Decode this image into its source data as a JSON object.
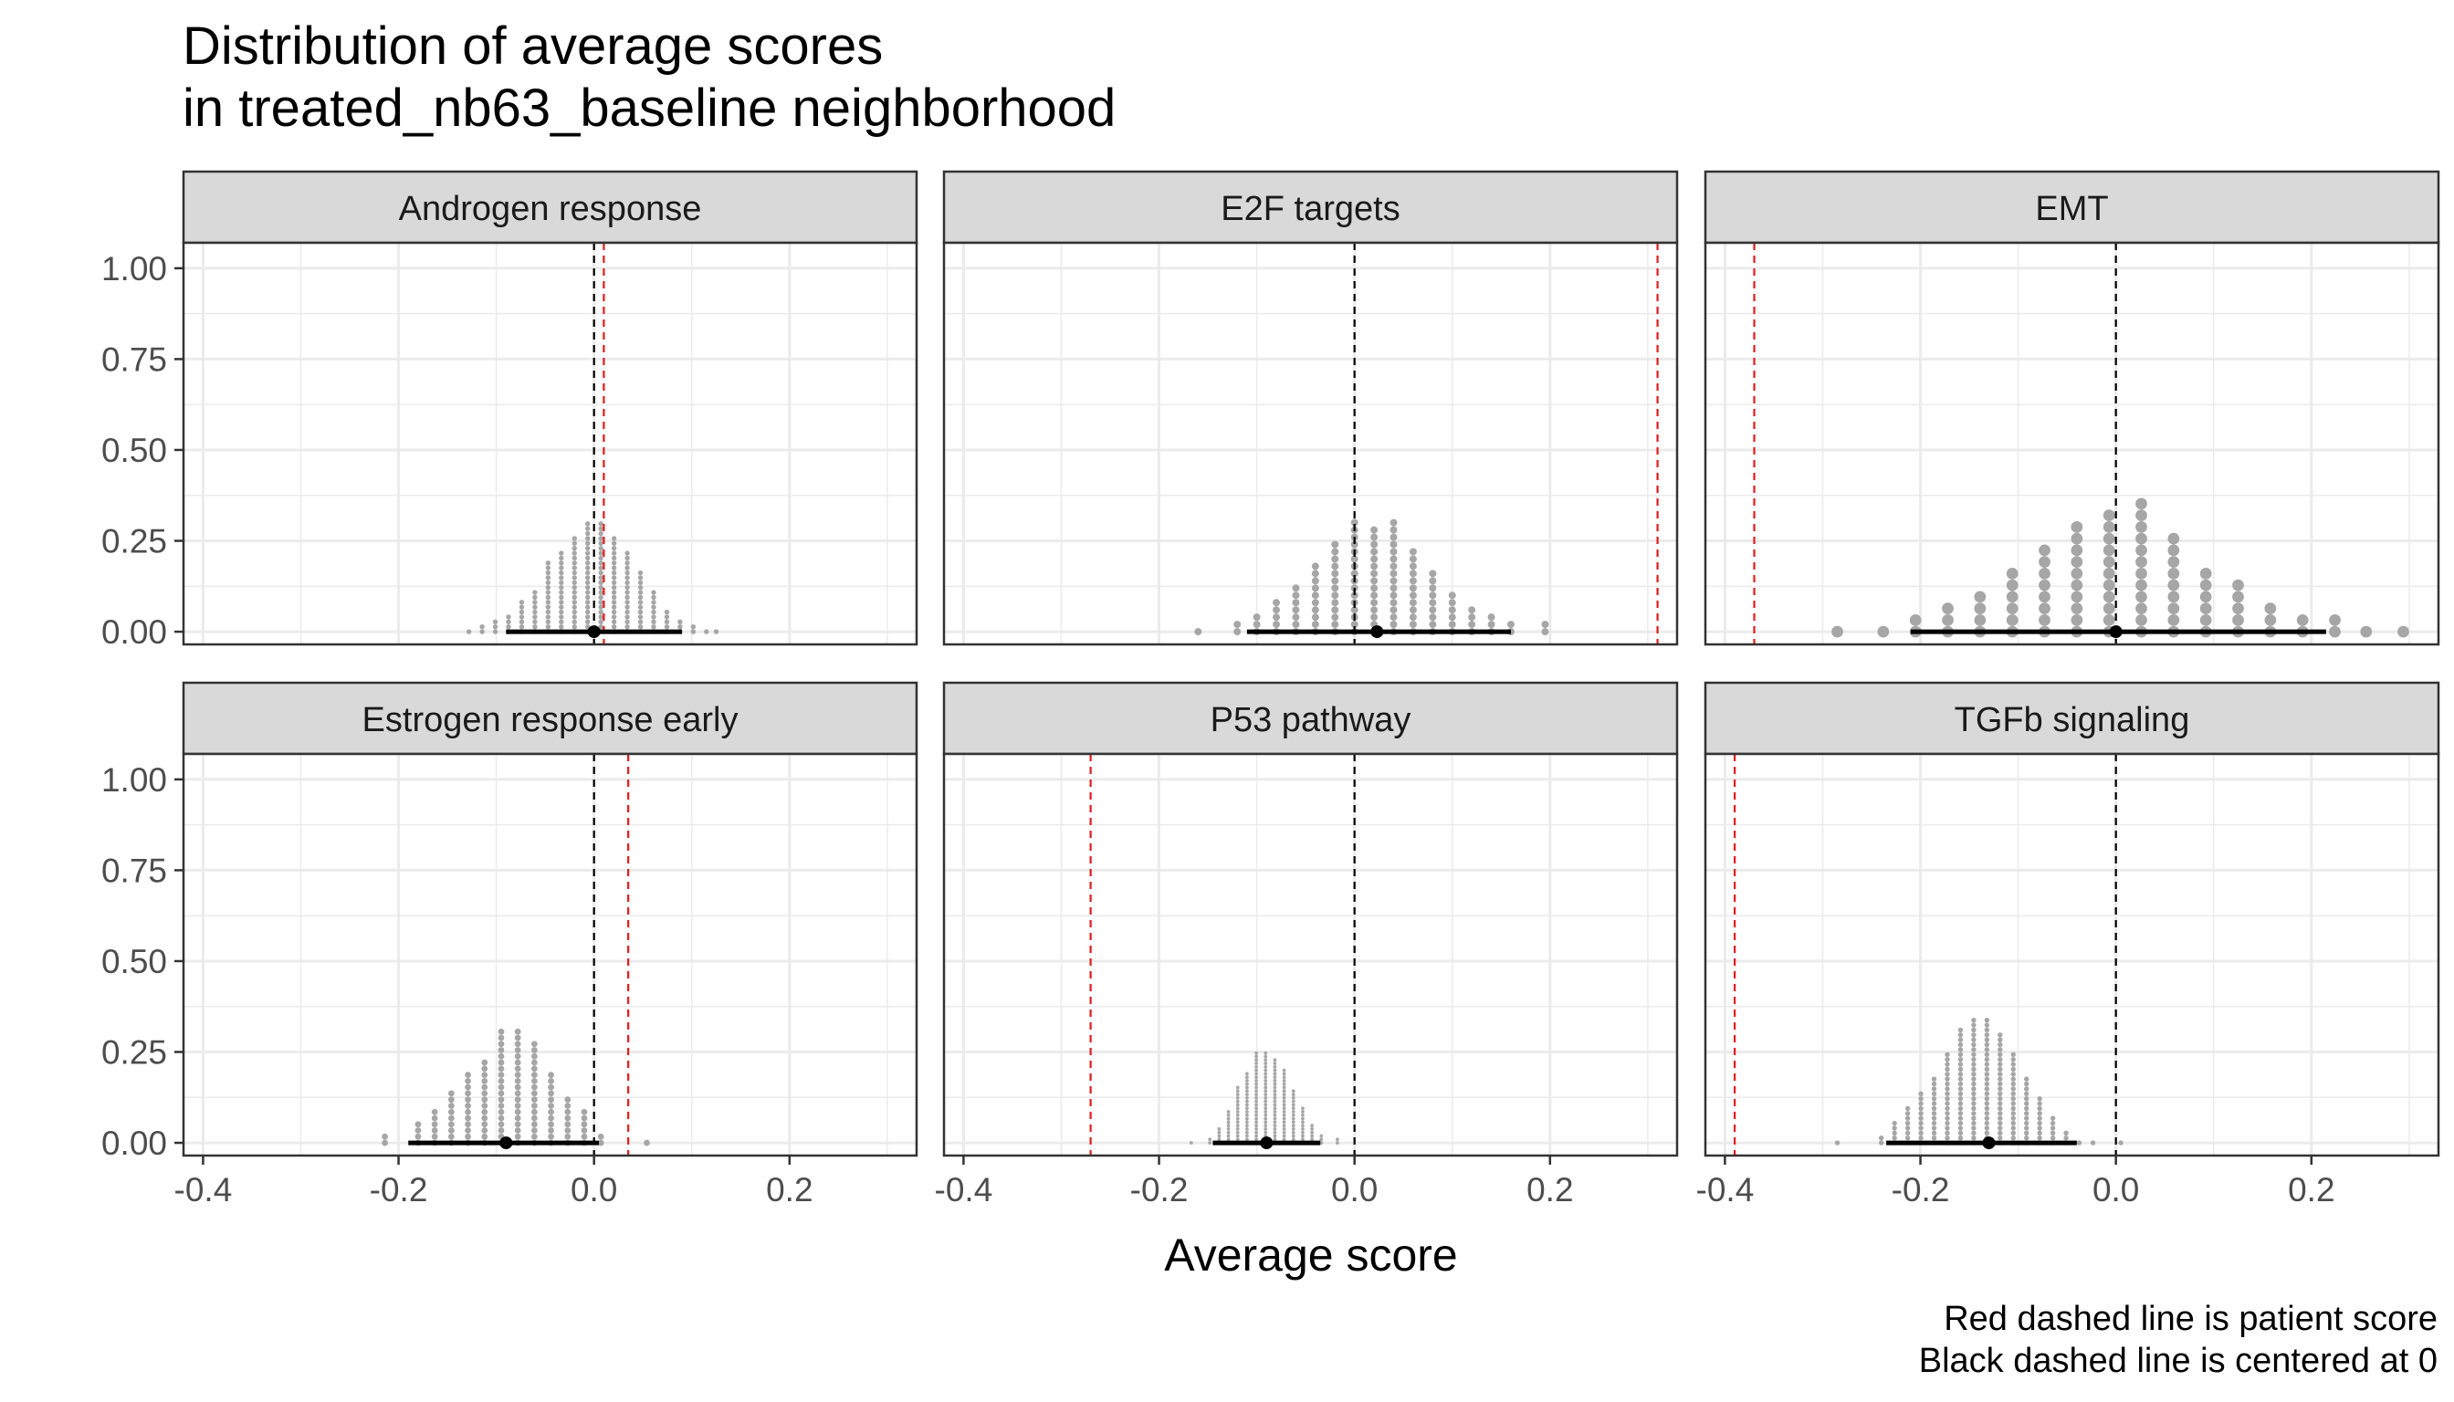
{
  "chart_data": {
    "type": "scatter",
    "subtype": "dotplot-facets",
    "title_lines": [
      "Distribution of average scores",
      "in treated_nb63_baseline neighborhood"
    ],
    "xlabel": "Average score",
    "ylabel": "",
    "caption_lines": [
      "Red dashed line is patient score",
      "Black dashed line is centered at 0"
    ],
    "xlim": [
      -0.42,
      0.33
    ],
    "ylim": [
      -0.035,
      1.07
    ],
    "x_ticks": [
      {
        "value": -0.4,
        "label": "-0.4"
      },
      {
        "value": -0.2,
        "label": "-0.2"
      },
      {
        "value": 0.0,
        "label": "0.0"
      },
      {
        "value": 0.2,
        "label": "0.2"
      }
    ],
    "y_ticks": [
      {
        "value": 0.0,
        "label": "0.00"
      },
      {
        "value": 0.25,
        "label": "0.25"
      },
      {
        "value": 0.5,
        "label": "0.50"
      },
      {
        "value": 0.75,
        "label": "0.75"
      },
      {
        "value": 1.0,
        "label": "1.00"
      }
    ],
    "grid": true,
    "colors": {
      "dots": "#a6a6a6",
      "patient_line": "#e31a1c",
      "center_line": "#000000",
      "strip_fill": "#d9d9d9",
      "grid": "#ebebeb",
      "panel_border": "#333333"
    },
    "panels": [
      {
        "label": "Androgen response",
        "patient_score": 0.01,
        "center": 0.0,
        "median": 0.0,
        "interval": [
          -0.09,
          0.09
        ],
        "bin_width": 0.0135,
        "columns": [
          {
            "x": -0.128,
            "n": 1
          },
          {
            "x": -0.1145,
            "n": 2
          },
          {
            "x": -0.101,
            "n": 3
          },
          {
            "x": -0.0875,
            "n": 4
          },
          {
            "x": -0.074,
            "n": 7
          },
          {
            "x": -0.0605,
            "n": 9
          },
          {
            "x": -0.047,
            "n": 15
          },
          {
            "x": -0.0335,
            "n": 17
          },
          {
            "x": -0.02,
            "n": 20
          },
          {
            "x": -0.0065,
            "n": 23
          },
          {
            "x": 0.007,
            "n": 23
          },
          {
            "x": 0.0205,
            "n": 20
          },
          {
            "x": 0.034,
            "n": 17
          },
          {
            "x": 0.0475,
            "n": 13
          },
          {
            "x": 0.061,
            "n": 9
          },
          {
            "x": 0.0745,
            "n": 5
          },
          {
            "x": 0.088,
            "n": 3
          },
          {
            "x": 0.1015,
            "n": 2
          },
          {
            "x": 0.115,
            "n": 1
          },
          {
            "x": 0.125,
            "n": 1
          }
        ]
      },
      {
        "label": "E2F targets",
        "patient_score": 0.31,
        "center": 0.0,
        "median": 0.023,
        "interval": [
          -0.11,
          0.16
        ],
        "bin_width": 0.02,
        "columns": [
          {
            "x": -0.16,
            "n": 1
          },
          {
            "x": -0.12,
            "n": 2
          },
          {
            "x": -0.1,
            "n": 3
          },
          {
            "x": -0.08,
            "n": 5
          },
          {
            "x": -0.06,
            "n": 7
          },
          {
            "x": -0.04,
            "n": 10
          },
          {
            "x": -0.02,
            "n": 13
          },
          {
            "x": 0.0,
            "n": 16
          },
          {
            "x": 0.02,
            "n": 15
          },
          {
            "x": 0.04,
            "n": 16
          },
          {
            "x": 0.06,
            "n": 12
          },
          {
            "x": 0.08,
            "n": 9
          },
          {
            "x": 0.1,
            "n": 6
          },
          {
            "x": 0.12,
            "n": 4
          },
          {
            "x": 0.14,
            "n": 3
          },
          {
            "x": 0.16,
            "n": 2
          },
          {
            "x": 0.195,
            "n": 2
          }
        ]
      },
      {
        "label": "EMT",
        "patient_score": -0.37,
        "center": 0.0,
        "median": 0.0,
        "interval": [
          -0.21,
          0.215
        ],
        "bin_width": 0.032,
        "columns": [
          {
            "x": -0.285,
            "n": 1
          },
          {
            "x": -0.238,
            "n": 1
          },
          {
            "x": -0.205,
            "n": 2
          },
          {
            "x": -0.172,
            "n": 3
          },
          {
            "x": -0.139,
            "n": 4
          },
          {
            "x": -0.106,
            "n": 6
          },
          {
            "x": -0.073,
            "n": 8
          },
          {
            "x": -0.04,
            "n": 10
          },
          {
            "x": -0.007,
            "n": 11
          },
          {
            "x": 0.026,
            "n": 12
          },
          {
            "x": 0.059,
            "n": 9
          },
          {
            "x": 0.092,
            "n": 6
          },
          {
            "x": 0.125,
            "n": 5
          },
          {
            "x": 0.158,
            "n": 3
          },
          {
            "x": 0.191,
            "n": 2
          },
          {
            "x": 0.224,
            "n": 2
          },
          {
            "x": 0.256,
            "n": 1
          },
          {
            "x": 0.294,
            "n": 1
          }
        ]
      },
      {
        "label": "Estrogen response early",
        "patient_score": 0.035,
        "center": 0.0,
        "median": -0.09,
        "interval": [
          -0.19,
          0.005
        ],
        "bin_width": 0.017,
        "columns": [
          {
            "x": -0.214,
            "n": 2
          },
          {
            "x": -0.18,
            "n": 4
          },
          {
            "x": -0.163,
            "n": 6
          },
          {
            "x": -0.146,
            "n": 9
          },
          {
            "x": -0.129,
            "n": 12
          },
          {
            "x": -0.112,
            "n": 14
          },
          {
            "x": -0.095,
            "n": 19
          },
          {
            "x": -0.078,
            "n": 19
          },
          {
            "x": -0.061,
            "n": 17
          },
          {
            "x": -0.044,
            "n": 12
          },
          {
            "x": -0.027,
            "n": 8
          },
          {
            "x": -0.01,
            "n": 6
          },
          {
            "x": 0.007,
            "n": 2
          },
          {
            "x": 0.054,
            "n": 1
          }
        ]
      },
      {
        "label": "P53 pathway",
        "patient_score": -0.27,
        "center": 0.0,
        "median": -0.09,
        "interval": [
          -0.145,
          -0.035
        ],
        "bin_width": 0.0095,
        "columns": [
          {
            "x": -0.167,
            "n": 1
          },
          {
            "x": -0.148,
            "n": 2
          },
          {
            "x": -0.1385,
            "n": 5
          },
          {
            "x": -0.129,
            "n": 10
          },
          {
            "x": -0.1195,
            "n": 17
          },
          {
            "x": -0.11,
            "n": 21
          },
          {
            "x": -0.1005,
            "n": 27
          },
          {
            "x": -0.091,
            "n": 27
          },
          {
            "x": -0.0815,
            "n": 25
          },
          {
            "x": -0.072,
            "n": 22
          },
          {
            "x": -0.0625,
            "n": 16
          },
          {
            "x": -0.053,
            "n": 11
          },
          {
            "x": -0.0435,
            "n": 6
          },
          {
            "x": -0.034,
            "n": 3
          },
          {
            "x": -0.0175,
            "n": 2
          }
        ]
      },
      {
        "label": "TGFb signaling",
        "patient_score": -0.39,
        "center": 0.0,
        "median": -0.13,
        "interval": [
          -0.235,
          -0.04
        ],
        "bin_width": 0.0135,
        "columns": [
          {
            "x": -0.285,
            "n": 1
          },
          {
            "x": -0.24,
            "n": 2
          },
          {
            "x": -0.2265,
            "n": 5
          },
          {
            "x": -0.213,
            "n": 8
          },
          {
            "x": -0.1995,
            "n": 11
          },
          {
            "x": -0.186,
            "n": 14
          },
          {
            "x": -0.1725,
            "n": 19
          },
          {
            "x": -0.159,
            "n": 24
          },
          {
            "x": -0.1455,
            "n": 26
          },
          {
            "x": -0.132,
            "n": 26
          },
          {
            "x": -0.1185,
            "n": 23
          },
          {
            "x": -0.105,
            "n": 19
          },
          {
            "x": -0.0915,
            "n": 14
          },
          {
            "x": -0.078,
            "n": 10
          },
          {
            "x": -0.0645,
            "n": 6
          },
          {
            "x": -0.051,
            "n": 3
          },
          {
            "x": -0.0375,
            "n": 1
          },
          {
            "x": -0.0235,
            "n": 1
          },
          {
            "x": 0.005,
            "n": 1
          }
        ]
      }
    ]
  }
}
